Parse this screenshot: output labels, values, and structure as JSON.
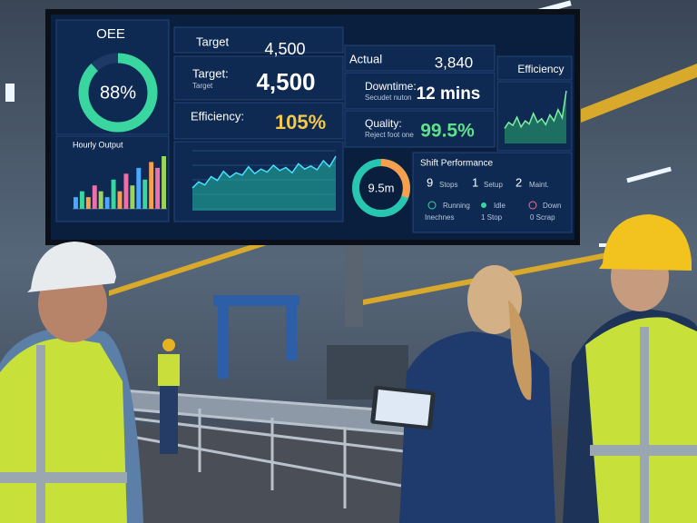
{
  "dashboard": {
    "oee": {
      "title": "OEE",
      "value": 88,
      "value_label": "88%"
    },
    "hourly_output": {
      "title": "Hourly Output",
      "values": [
        2,
        3,
        2,
        4,
        3,
        2,
        5,
        3,
        6,
        4,
        7,
        5,
        8,
        7,
        9
      ],
      "colors": [
        "#4aa8ff",
        "#3ad6a0",
        "#f6a04d",
        "#ef6fa8",
        "#9ad45a"
      ]
    },
    "target": {
      "header": "Target",
      "header_value": "4,500",
      "label": "Target:",
      "sublabel": "Target",
      "value": "4,500"
    },
    "efficiency": {
      "label": "Efficiency:",
      "value": "105%"
    },
    "trend_chart": {
      "values": [
        30,
        38,
        34,
        45,
        40,
        52,
        44,
        50,
        47,
        58,
        49,
        55,
        51,
        60,
        53,
        57,
        50,
        62,
        55,
        59,
        54,
        66,
        58,
        72
      ]
    },
    "actual": {
      "header": "Actual",
      "value": "3,840"
    },
    "downtime": {
      "label": "Downtime:",
      "sublabel": "Secudet nuton",
      "value": "12 mins"
    },
    "quality": {
      "label": "Quality:",
      "sublabel": "Reject foot one",
      "value": "99.5%"
    },
    "efficiency_panel": {
      "title": "Efficiency",
      "values": [
        20,
        28,
        24,
        35,
        22,
        30,
        26,
        40,
        28,
        33,
        25,
        38,
        30,
        45,
        34,
        70
      ]
    },
    "cycle": {
      "value": "9.5m"
    },
    "shift_performance": {
      "title": "Shift Performance",
      "stats": [
        {
          "count": "9",
          "label": "Stops"
        },
        {
          "count": "1",
          "label": "Setup"
        },
        {
          "count": "2",
          "label": "Maint."
        }
      ],
      "states": [
        {
          "label": "Running",
          "sublabel": "Inechnes"
        },
        {
          "label": "Idle",
          "sublabel": "1 Stop"
        },
        {
          "label": "Down",
          "sublabel": "0 Scrap"
        }
      ]
    }
  }
}
